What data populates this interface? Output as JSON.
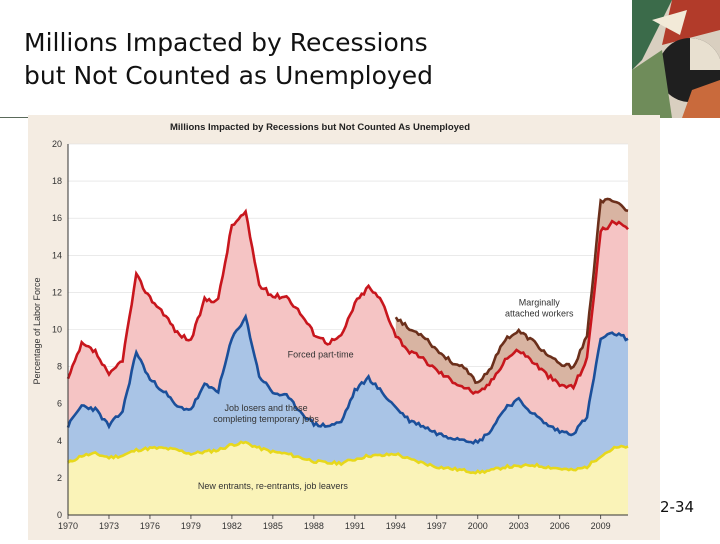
{
  "slide": {
    "title_line1": "Millions Impacted by Recessions",
    "title_line2": "but Not Counted as Unemployed",
    "slide_number": "2-34"
  },
  "colors": {
    "top_line": "#6b2f1b",
    "marginal_fill": "#d8b4a2",
    "red_line": "#c8161d",
    "parttime_fill": "#f5c4c4",
    "blue_line": "#1b4f9a",
    "joblosers_fill": "#a9c4e6",
    "yellow_line": "#e7d81c",
    "entrants_fill": "#faf3b8"
  },
  "chart_data": {
    "type": "area",
    "title": "Millions Impacted by Recessions but Not Counted As Unemployed",
    "xlabel": "",
    "ylabel": "Percentage of Labor Force",
    "xlim": [
      1970,
      2011
    ],
    "ylim": [
      0,
      20
    ],
    "yticks": [
      0,
      2,
      4,
      6,
      8,
      10,
      12,
      14,
      16,
      18,
      20
    ],
    "xticks": [
      1970,
      1973,
      1976,
      1979,
      1982,
      1985,
      1988,
      1991,
      1994,
      1997,
      2000,
      2003,
      2006,
      2009
    ],
    "grid": true,
    "series": [
      {
        "name": "New entrants, re-entrants, job leavers",
        "x": [
          1970,
          1971,
          1972,
          1973,
          1974,
          1975,
          1976,
          1977,
          1978,
          1979,
          1980,
          1981,
          1982,
          1983,
          1984,
          1985,
          1986,
          1987,
          1988,
          1989,
          1990,
          1991,
          1992,
          1993,
          1994,
          1995,
          1996,
          1997,
          1998,
          1999,
          2000,
          2001,
          2002,
          2003,
          2004,
          2005,
          2006,
          2007,
          2008,
          2009,
          2010,
          2011
        ],
        "values": [
          2.8,
          3.2,
          3.3,
          3.1,
          3.2,
          3.5,
          3.6,
          3.6,
          3.5,
          3.3,
          3.4,
          3.5,
          3.8,
          3.9,
          3.6,
          3.4,
          3.3,
          3.1,
          2.9,
          2.8,
          2.8,
          3.0,
          3.2,
          3.2,
          3.3,
          3.0,
          2.8,
          2.6,
          2.5,
          2.4,
          2.3,
          2.4,
          2.6,
          2.6,
          2.7,
          2.6,
          2.5,
          2.4,
          2.6,
          3.2,
          3.6,
          3.7
        ]
      },
      {
        "name": "Job losers and those completing temporary jobs",
        "x": [
          1970,
          1971,
          1972,
          1973,
          1974,
          1975,
          1976,
          1977,
          1978,
          1979,
          1980,
          1981,
          1982,
          1983,
          1984,
          1985,
          1986,
          1987,
          1988,
          1989,
          1990,
          1991,
          1992,
          1993,
          1994,
          1995,
          1996,
          1997,
          1998,
          1999,
          2000,
          2001,
          2002,
          2003,
          2004,
          2005,
          2006,
          2007,
          2008,
          2009,
          2010,
          2011
        ],
        "values": [
          4.8,
          5.9,
          5.7,
          4.8,
          5.6,
          8.8,
          7.3,
          6.7,
          5.8,
          5.7,
          7.0,
          6.7,
          9.5,
          10.7,
          7.5,
          6.6,
          6.4,
          5.6,
          4.9,
          4.8,
          5.0,
          6.7,
          7.4,
          6.6,
          5.8,
          5.1,
          4.8,
          4.4,
          4.2,
          4.1,
          3.9,
          4.6,
          5.8,
          6.2,
          5.5,
          4.9,
          4.5,
          4.4,
          5.3,
          9.5,
          9.8,
          9.5
        ]
      },
      {
        "name": "Forced part-time",
        "x": [
          1970,
          1971,
          1972,
          1973,
          1974,
          1975,
          1976,
          1977,
          1978,
          1979,
          1980,
          1981,
          1982,
          1983,
          1984,
          1985,
          1986,
          1987,
          1988,
          1989,
          1990,
          1991,
          1992,
          1993,
          1994,
          1995,
          1996,
          1997,
          1998,
          1999,
          2000,
          2001,
          2002,
          2003,
          2004,
          2005,
          2006,
          2007,
          2008,
          2009,
          2010,
          2011
        ],
        "values": [
          7.3,
          9.2,
          8.8,
          7.5,
          8.4,
          12.9,
          11.7,
          10.9,
          9.8,
          9.4,
          11.6,
          11.6,
          15.6,
          16.3,
          12.4,
          11.8,
          11.8,
          10.9,
          9.8,
          9.3,
          9.6,
          11.4,
          12.3,
          11.5,
          9.7,
          8.8,
          8.4,
          7.8,
          7.3,
          6.9,
          6.5,
          7.2,
          8.4,
          8.9,
          8.3,
          7.6,
          7.0,
          6.9,
          8.4,
          15.3,
          15.8,
          15.4
        ]
      },
      {
        "name": "Marginally attached workers",
        "x": [
          1994,
          1995,
          1996,
          1997,
          1998,
          1999,
          2000,
          2001,
          2002,
          2003,
          2004,
          2005,
          2006,
          2007,
          2008,
          2009,
          2010,
          2011
        ],
        "values": [
          10.7,
          10.0,
          9.7,
          8.9,
          8.3,
          7.9,
          7.1,
          8.0,
          9.5,
          9.9,
          9.4,
          8.7,
          8.1,
          8.0,
          9.6,
          16.9,
          17.0,
          16.4
        ]
      }
    ],
    "annotations": [
      {
        "text_line1": "Marginally",
        "text_line2": "attached workers",
        "x": 2004.5,
        "y": 11.3
      },
      {
        "text": "Forced part-time",
        "x": 1988.5,
        "y": 8.5
      },
      {
        "text_line1": "Job losers and those",
        "text_line2": "completing temporary jobs",
        "x": 1984.5,
        "y": 5.6
      },
      {
        "text": "New entrants, re-entrants, job leavers",
        "x": 1985,
        "y": 1.4
      }
    ]
  }
}
